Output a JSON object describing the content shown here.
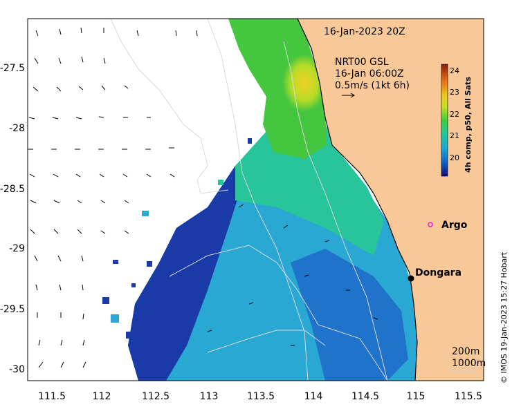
{
  "header": {
    "date_label": "16-Jan-2023 20Z",
    "product_line1": "NRT00 GSL",
    "product_line2": "16-Jan 06:00Z",
    "product_line3": "0.5m/s (1kt 6h)"
  },
  "axes": {
    "x_ticks": [
      "111.5",
      "112",
      "112.5",
      "113",
      "113.5",
      "114",
      "114.5",
      "115",
      "115.5"
    ],
    "y_ticks": [
      "-27.5",
      "-28",
      "-28.5",
      "-29",
      "-29.5",
      "-30"
    ]
  },
  "colorbar": {
    "title": "4h comp, p50, All Sats",
    "ticks": [
      "24",
      "23",
      "22",
      "21",
      "20"
    ],
    "colors": [
      "#120a78",
      "#1060c8",
      "#1aa8d8",
      "#20c89a",
      "#3ed03a",
      "#c8e020",
      "#f0c818",
      "#e86a10",
      "#8a1a06"
    ]
  },
  "places": {
    "argo": "Argo",
    "dongara": "Dongara"
  },
  "isobaths": {
    "label_200": "200m",
    "label_1000": "1000m"
  },
  "credit": "© IMOS 19-Jan-2023 15:27 Hobart",
  "colors": {
    "land": "#f8c898",
    "argo_marker": "#e020e0",
    "station_marker": "#000000"
  }
}
